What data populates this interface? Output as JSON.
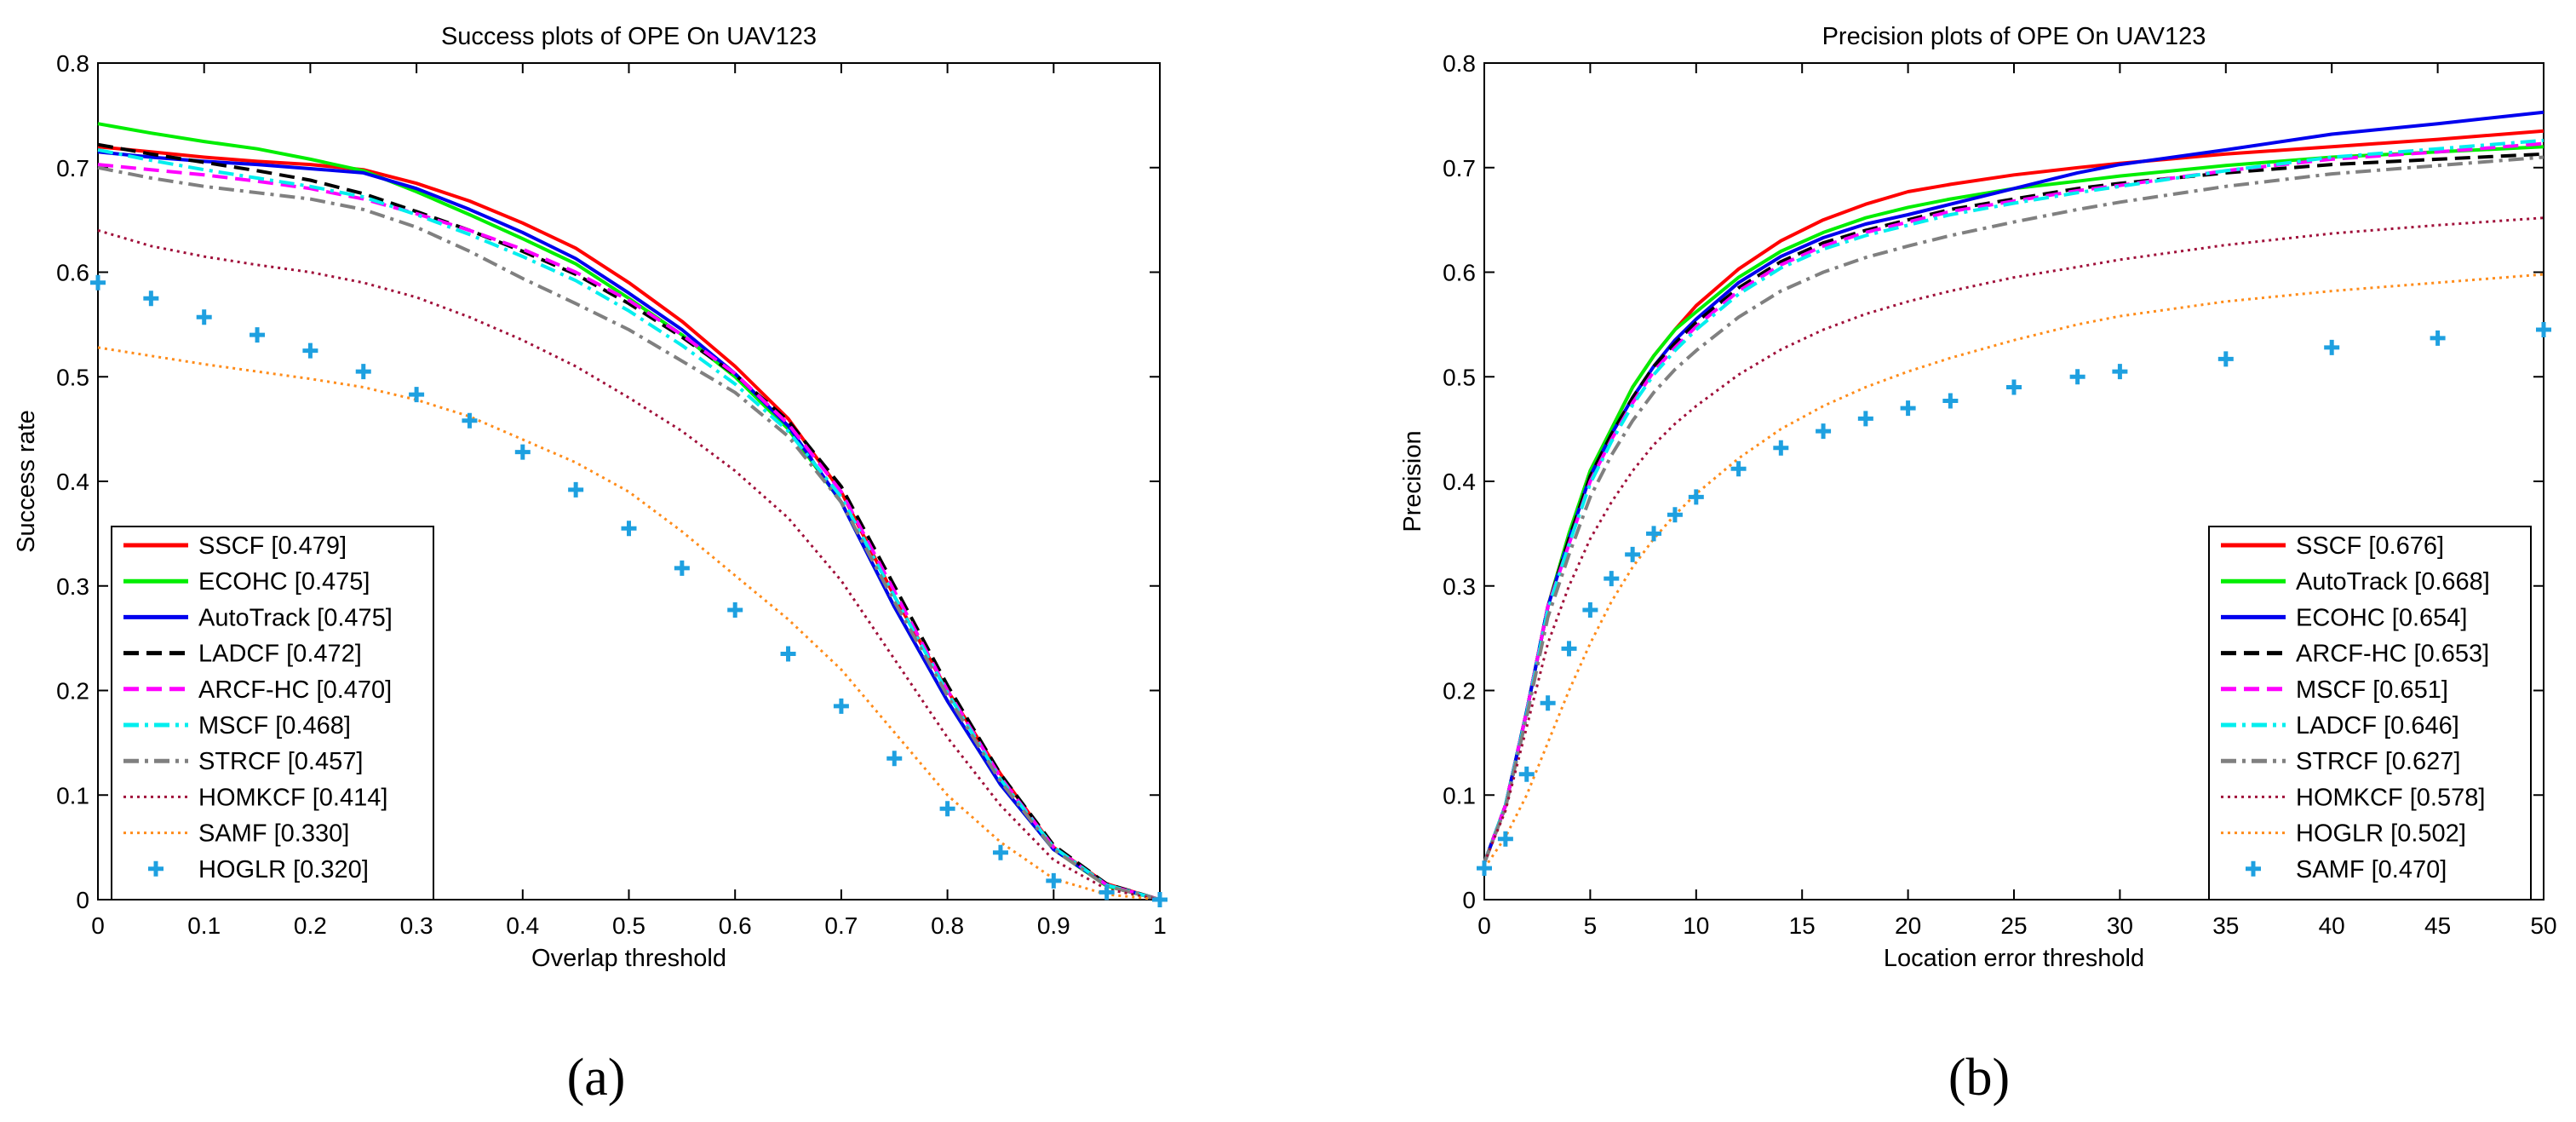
{
  "figure": {
    "caption_a": "(a)",
    "caption_b": "(b)"
  },
  "chart_data": [
    {
      "type": "line",
      "title": "Success plots of OPE On UAV123",
      "xlabel": "Overlap threshold",
      "ylabel": "Success rate",
      "xlim": [
        0,
        1
      ],
      "ylim": [
        0,
        0.8
      ],
      "xticks": [
        "0",
        "0.1",
        "0.2",
        "0.3",
        "0.4",
        "0.5",
        "0.6",
        "0.7",
        "0.8",
        "0.9",
        "1"
      ],
      "yticks": [
        "0",
        "0.1",
        "0.2",
        "0.3",
        "0.4",
        "0.5",
        "0.6",
        "0.7",
        "0.8"
      ],
      "legend_position": "bottom-left",
      "x": [
        0,
        0.05,
        0.1,
        0.15,
        0.2,
        0.25,
        0.3,
        0.35,
        0.4,
        0.45,
        0.5,
        0.55,
        0.6,
        0.65,
        0.7,
        0.75,
        0.8,
        0.85,
        0.9,
        0.95,
        1.0
      ],
      "series": [
        {
          "name": "SSCF",
          "label": "SSCF [0.479]",
          "color": "#ff0000",
          "style": "solid",
          "values": [
            0.72,
            0.715,
            0.71,
            0.706,
            0.703,
            0.698,
            0.685,
            0.668,
            0.647,
            0.623,
            0.59,
            0.553,
            0.51,
            0.46,
            0.39,
            0.29,
            0.2,
            0.12,
            0.05,
            0.015,
            0
          ]
        },
        {
          "name": "ECOHC",
          "label": "ECOHC [0.475]",
          "color": "#00ee00",
          "style": "solid",
          "values": [
            0.742,
            0.733,
            0.725,
            0.718,
            0.708,
            0.697,
            0.677,
            0.655,
            0.632,
            0.608,
            0.575,
            0.54,
            0.5,
            0.45,
            0.38,
            0.28,
            0.19,
            0.11,
            0.048,
            0.013,
            0
          ]
        },
        {
          "name": "AutoTrack",
          "label": "AutoTrack [0.475]",
          "color": "#0000ee",
          "style": "solid",
          "values": [
            0.715,
            0.71,
            0.706,
            0.703,
            0.699,
            0.695,
            0.68,
            0.66,
            0.638,
            0.613,
            0.58,
            0.545,
            0.503,
            0.453,
            0.38,
            0.28,
            0.19,
            0.11,
            0.048,
            0.014,
            0
          ]
        },
        {
          "name": "LADCF",
          "label": "LADCF [0.472]",
          "color": "#000000",
          "style": "dashed",
          "values": [
            0.722,
            0.713,
            0.705,
            0.697,
            0.688,
            0.675,
            0.658,
            0.64,
            0.62,
            0.598,
            0.57,
            0.538,
            0.502,
            0.458,
            0.395,
            0.3,
            0.205,
            0.12,
            0.052,
            0.015,
            0
          ]
        },
        {
          "name": "ARCF-HC",
          "label": "ARCF-HC [0.470]",
          "color": "#ff00ff",
          "style": "dashed",
          "values": [
            0.703,
            0.698,
            0.693,
            0.687,
            0.68,
            0.67,
            0.656,
            0.64,
            0.622,
            0.6,
            0.573,
            0.54,
            0.503,
            0.455,
            0.39,
            0.295,
            0.2,
            0.117,
            0.05,
            0.014,
            0
          ]
        },
        {
          "name": "MSCF",
          "label": "MSCF [0.468]",
          "color": "#00eeee",
          "style": "dashdot",
          "values": [
            0.717,
            0.707,
            0.698,
            0.69,
            0.682,
            0.672,
            0.655,
            0.636,
            0.615,
            0.592,
            0.563,
            0.53,
            0.493,
            0.448,
            0.385,
            0.29,
            0.198,
            0.115,
            0.05,
            0.014,
            0
          ]
        },
        {
          "name": "STRCF",
          "label": "STRCF [0.457]",
          "color": "#808080",
          "style": "dashdot",
          "values": [
            0.7,
            0.69,
            0.682,
            0.676,
            0.67,
            0.66,
            0.643,
            0.62,
            0.594,
            0.57,
            0.545,
            0.515,
            0.485,
            0.443,
            0.38,
            0.285,
            0.195,
            0.113,
            0.048,
            0.013,
            0
          ]
        },
        {
          "name": "HOMKCF",
          "label": "HOMKCF [0.414]",
          "color": "#a0103a",
          "style": "dotted",
          "values": [
            0.64,
            0.625,
            0.615,
            0.607,
            0.6,
            0.59,
            0.576,
            0.557,
            0.535,
            0.51,
            0.48,
            0.448,
            0.41,
            0.365,
            0.305,
            0.23,
            0.155,
            0.09,
            0.038,
            0.01,
            0
          ]
        },
        {
          "name": "SAMF",
          "label": "SAMF [0.330]",
          "color": "#ff8c1a",
          "style": "dotted",
          "values": [
            0.528,
            0.52,
            0.512,
            0.505,
            0.498,
            0.49,
            0.478,
            0.462,
            0.44,
            0.418,
            0.39,
            0.352,
            0.31,
            0.268,
            0.22,
            0.16,
            0.1,
            0.055,
            0.02,
            0.005,
            0
          ]
        },
        {
          "name": "HOGLR",
          "label": "HOGLR [0.320]",
          "color": "#1ea0e0",
          "style": "plus",
          "values": [
            0.59,
            0.575,
            0.557,
            0.54,
            0.525,
            0.505,
            0.483,
            0.458,
            0.428,
            0.392,
            0.355,
            0.317,
            0.277,
            0.235,
            0.185,
            0.135,
            0.087,
            0.045,
            0.018,
            0.007,
            0
          ]
        }
      ]
    },
    {
      "type": "line",
      "title": "Precision plots of OPE On UAV123",
      "xlabel": "Location error threshold",
      "ylabel": "Precision",
      "xlim": [
        0,
        50
      ],
      "ylim": [
        0,
        0.8
      ],
      "xticks": [
        "0",
        "5",
        "10",
        "15",
        "20",
        "25",
        "30",
        "35",
        "40",
        "45",
        "50"
      ],
      "yticks": [
        "0",
        "0.1",
        "0.2",
        "0.3",
        "0.4",
        "0.5",
        "0.6",
        "0.7",
        "0.8"
      ],
      "legend_position": "bottom-right",
      "x": [
        0,
        1,
        2,
        3,
        4,
        5,
        6,
        7,
        8,
        9,
        10,
        12,
        14,
        16,
        18,
        20,
        22,
        25,
        28,
        30,
        35,
        40,
        45,
        50
      ],
      "series": [
        {
          "name": "SSCF",
          "label": "SSCF [0.676]",
          "color": "#ff0000",
          "style": "solid",
          "values": [
            0.035,
            0.09,
            0.18,
            0.28,
            0.35,
            0.41,
            0.45,
            0.49,
            0.52,
            0.545,
            0.568,
            0.603,
            0.63,
            0.65,
            0.665,
            0.677,
            0.684,
            0.693,
            0.7,
            0.704,
            0.713,
            0.72,
            0.727,
            0.735
          ]
        },
        {
          "name": "AutoTrack",
          "label": "AutoTrack [0.668]",
          "color": "#00ee00",
          "style": "solid",
          "values": [
            0.035,
            0.09,
            0.18,
            0.28,
            0.35,
            0.41,
            0.45,
            0.49,
            0.52,
            0.545,
            0.562,
            0.595,
            0.62,
            0.638,
            0.652,
            0.662,
            0.67,
            0.68,
            0.687,
            0.692,
            0.702,
            0.71,
            0.715,
            0.72
          ]
        },
        {
          "name": "ECOHC",
          "label": "ECOHC [0.654]",
          "color": "#0000ee",
          "style": "solid",
          "values": [
            0.035,
            0.09,
            0.18,
            0.28,
            0.345,
            0.405,
            0.445,
            0.48,
            0.51,
            0.535,
            0.555,
            0.59,
            0.615,
            0.633,
            0.646,
            0.655,
            0.665,
            0.68,
            0.695,
            0.703,
            0.717,
            0.732,
            0.742,
            0.753
          ]
        },
        {
          "name": "ARCF-HC",
          "label": "ARCF-HC [0.653]",
          "color": "#000000",
          "style": "dashed",
          "values": [
            0.035,
            0.09,
            0.18,
            0.28,
            0.345,
            0.405,
            0.445,
            0.48,
            0.51,
            0.532,
            0.552,
            0.585,
            0.61,
            0.628,
            0.64,
            0.65,
            0.66,
            0.67,
            0.68,
            0.685,
            0.695,
            0.703,
            0.708,
            0.713
          ]
        },
        {
          "name": "MSCF",
          "label": "MSCF [0.651]",
          "color": "#ff00ff",
          "style": "dashed",
          "values": [
            0.035,
            0.09,
            0.18,
            0.28,
            0.34,
            0.4,
            0.44,
            0.475,
            0.505,
            0.528,
            0.548,
            0.582,
            0.607,
            0.625,
            0.638,
            0.648,
            0.658,
            0.668,
            0.678,
            0.683,
            0.697,
            0.708,
            0.715,
            0.723
          ]
        },
        {
          "name": "LADCF",
          "label": "LADCF [0.646]",
          "color": "#00eeee",
          "style": "dashdot",
          "values": [
            0.035,
            0.09,
            0.178,
            0.277,
            0.34,
            0.398,
            0.438,
            0.473,
            0.502,
            0.525,
            0.545,
            0.579,
            0.604,
            0.622,
            0.635,
            0.645,
            0.655,
            0.666,
            0.676,
            0.682,
            0.697,
            0.71,
            0.718,
            0.726
          ]
        },
        {
          "name": "STRCF",
          "label": "STRCF [0.627]",
          "color": "#808080",
          "style": "dashdot",
          "values": [
            0.035,
            0.088,
            0.175,
            0.27,
            0.33,
            0.385,
            0.425,
            0.458,
            0.485,
            0.507,
            0.525,
            0.557,
            0.582,
            0.6,
            0.614,
            0.625,
            0.635,
            0.648,
            0.66,
            0.667,
            0.682,
            0.694,
            0.702,
            0.71
          ]
        },
        {
          "name": "HOMKCF",
          "label": "HOMKCF [0.578]",
          "color": "#a0103a",
          "style": "dotted",
          "values": [
            0.035,
            0.085,
            0.165,
            0.245,
            0.3,
            0.345,
            0.38,
            0.41,
            0.435,
            0.455,
            0.472,
            0.502,
            0.526,
            0.545,
            0.56,
            0.572,
            0.582,
            0.595,
            0.605,
            0.612,
            0.626,
            0.637,
            0.645,
            0.652
          ]
        },
        {
          "name": "HOGLR",
          "label": "HOGLR [0.502]",
          "color": "#ff8c1a",
          "style": "dotted",
          "values": [
            0.03,
            0.06,
            0.1,
            0.15,
            0.2,
            0.245,
            0.285,
            0.318,
            0.345,
            0.368,
            0.388,
            0.422,
            0.45,
            0.472,
            0.49,
            0.505,
            0.518,
            0.535,
            0.55,
            0.558,
            0.572,
            0.582,
            0.59,
            0.598
          ]
        },
        {
          "name": "SAMF",
          "label": "SAMF [0.470]",
          "color": "#1ea0e0",
          "style": "plus",
          "values": [
            0.03,
            0.058,
            0.12,
            0.188,
            0.24,
            0.277,
            0.307,
            0.33,
            0.35,
            0.368,
            0.385,
            0.412,
            0.432,
            0.448,
            0.46,
            0.47,
            0.477,
            0.49,
            0.5,
            0.505,
            0.517,
            0.528,
            0.537,
            0.545
          ]
        }
      ]
    }
  ]
}
